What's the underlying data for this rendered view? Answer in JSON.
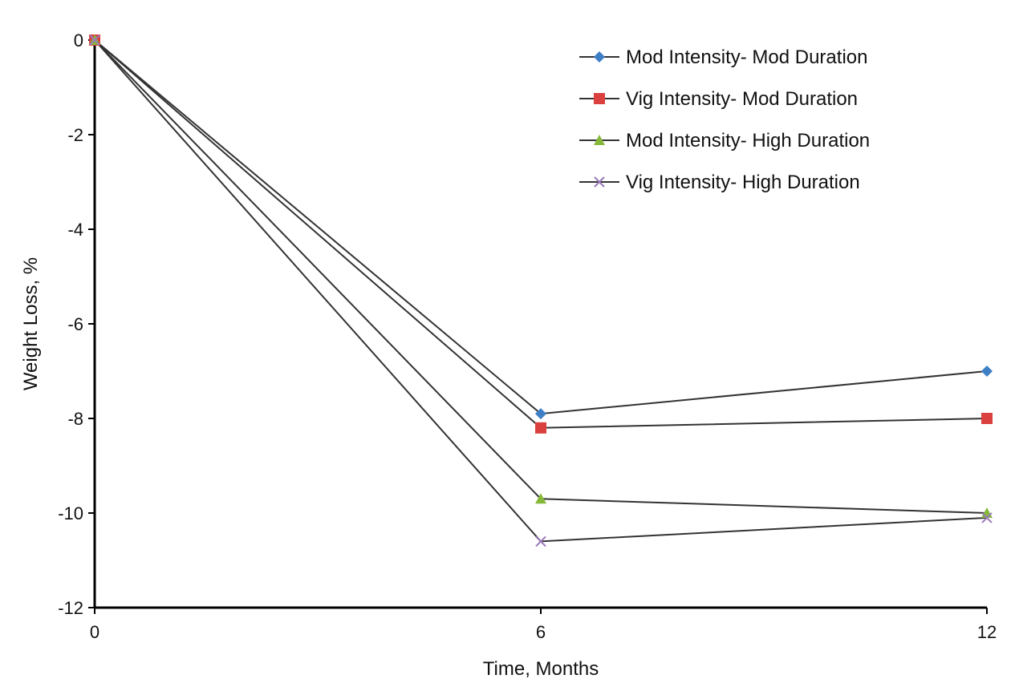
{
  "chart_data": {
    "type": "line",
    "title": "",
    "xlabel": "Time, Months",
    "ylabel": "Weight Loss, %",
    "x": [
      0,
      6,
      12
    ],
    "xticks": [
      "0",
      "6",
      "12"
    ],
    "yticks": [
      "0",
      "-2",
      "-4",
      "-6",
      "-8",
      "-10",
      "-12"
    ],
    "xlim": [
      0,
      12
    ],
    "ylim": [
      -12,
      0
    ],
    "grid": false,
    "legend_position": "top-right",
    "series": [
      {
        "name": "Mod Intensity- Mod Duration",
        "values": [
          0,
          -7.9,
          -7.0
        ],
        "color": "#3f7fc6",
        "marker": "diamond"
      },
      {
        "name": "Vig Intensity- Mod Duration",
        "values": [
          0,
          -8.2,
          -8.0
        ],
        "color": "#d9403e",
        "marker": "square"
      },
      {
        "name": "Mod Intensity- High Duration",
        "values": [
          0,
          -9.7,
          -10.0
        ],
        "color": "#86b83a",
        "marker": "triangle"
      },
      {
        "name": "Vig Intensity- High Duration",
        "values": [
          0,
          -10.6,
          -10.1
        ],
        "color": "#9a79b8",
        "marker": "x"
      }
    ],
    "line_color": "#333333"
  }
}
